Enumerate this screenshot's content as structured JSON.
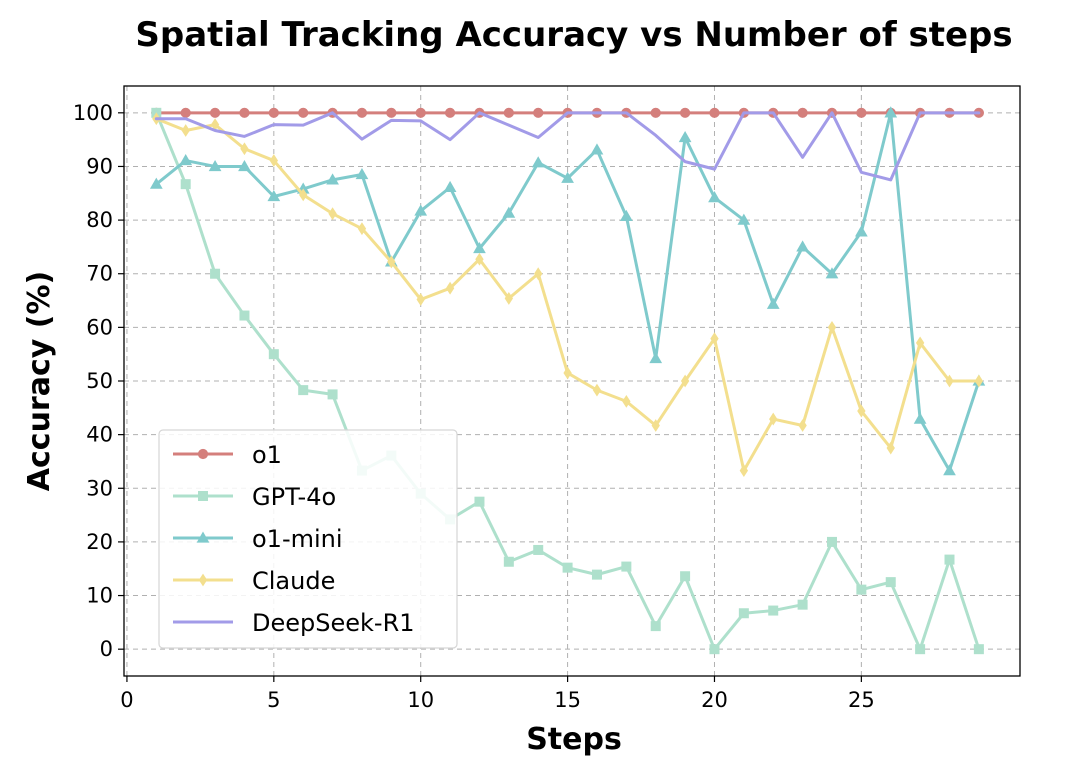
{
  "chart_data": {
    "type": "line",
    "title": "Spatial Tracking Accuracy vs Number of steps",
    "xlabel": "Steps",
    "ylabel": "Accuracy (%)",
    "xlim": [
      -0.1,
      30.4
    ],
    "ylim": [
      -5,
      105
    ],
    "xticks": [
      0,
      5,
      10,
      15,
      20,
      25
    ],
    "yticks": [
      0,
      10,
      20,
      30,
      40,
      50,
      60,
      70,
      80,
      90,
      100
    ],
    "grid": true,
    "legend_position": "lower-left",
    "x": [
      1,
      2,
      3,
      4,
      5,
      6,
      7,
      8,
      9,
      10,
      11,
      12,
      13,
      14,
      15,
      16,
      17,
      18,
      19,
      20,
      21,
      22,
      23,
      24,
      25,
      26,
      27,
      28,
      29
    ],
    "series": [
      {
        "name": "o1",
        "color": "#d47f7c",
        "marker": "circle",
        "values": [
          100,
          100,
          100,
          100,
          100,
          100,
          100,
          100,
          100,
          100,
          100,
          100,
          100,
          100,
          100,
          100,
          100,
          100,
          100,
          100,
          100,
          100,
          100,
          100,
          100,
          100,
          100,
          100,
          100
        ]
      },
      {
        "name": "GPT-4o",
        "color": "#aee0cc",
        "marker": "square",
        "values": [
          100,
          86.7,
          70,
          62.2,
          55,
          48.3,
          47.5,
          33.3,
          36.1,
          29,
          24.2,
          27.5,
          16.3,
          18.5,
          15.2,
          13.9,
          15.4,
          4.3,
          13.6,
          0,
          6.7,
          7.2,
          8.3,
          20,
          11.1,
          12.5,
          0,
          16.7,
          0
        ]
      },
      {
        "name": "o1-mini",
        "color": "#7fcacc",
        "marker": "triangle",
        "values": [
          86.7,
          91.1,
          90,
          90,
          84.4,
          85.8,
          87.5,
          88.5,
          72.2,
          81.7,
          86.1,
          74.7,
          81.3,
          90.7,
          87.8,
          93.1,
          80.7,
          54.2,
          95.4,
          84.2,
          80,
          64.3,
          75,
          70,
          77.8,
          100,
          42.9,
          33.3,
          50
        ]
      },
      {
        "name": "Claude",
        "color": "#f3df8e",
        "marker": "diamond",
        "values": [
          98.9,
          96.7,
          97.8,
          93.3,
          91.1,
          84.7,
          81.2,
          78.4,
          72.2,
          65.2,
          67.3,
          72.7,
          65.4,
          70,
          51.5,
          48.3,
          46.2,
          41.7,
          50,
          57.9,
          33.3,
          42.9,
          41.7,
          60,
          44.4,
          37.5,
          57.1,
          50,
          50
        ]
      },
      {
        "name": "DeepSeek-R1",
        "color": "#a29be8",
        "marker": "none",
        "values": [
          98.9,
          98.9,
          96.7,
          95.6,
          97.8,
          97.7,
          100,
          95.1,
          98.6,
          98.5,
          95,
          100,
          97.7,
          95.4,
          100,
          100,
          100,
          95.8,
          90.9,
          89.5,
          100,
          100,
          91.7,
          100,
          88.9,
          87.5,
          100,
          100,
          100
        ]
      }
    ]
  }
}
